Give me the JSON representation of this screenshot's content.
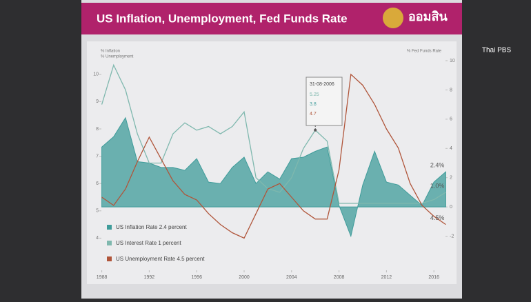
{
  "chart_data": {
    "type": "line",
    "title": "US Inflation, Unemployment, Fed Funds Rate",
    "logo": "ออมสิน",
    "watermark": "Thai PBS",
    "y_label": [
      "% Inflation",
      "% Unemployment"
    ],
    "y2_label": "% Fed Funds Rate",
    "x": [
      1988,
      1989,
      1990,
      1991,
      1992,
      1993,
      1994,
      1995,
      1996,
      1997,
      1998,
      1999,
      2000,
      2001,
      2002,
      2003,
      2004,
      2005,
      2006,
      2007,
      2008,
      2009,
      2010,
      2011,
      2012,
      2013,
      2014,
      2015,
      2016,
      2017
    ],
    "xlim": [
      1987.5,
      2017.5
    ],
    "xticks": [
      1988,
      1992,
      1996,
      2000,
      2004,
      2008,
      2012,
      2016
    ],
    "ylim": [
      3,
      10.5
    ],
    "yticks": [
      4,
      5,
      6,
      7,
      8,
      9,
      10
    ],
    "y2lim": [
      -4,
      10
    ],
    "y2ticks": [
      -2,
      0,
      2,
      4,
      6,
      8,
      10
    ],
    "series": [
      {
        "name": "US Inflation Rate  2.4 percent",
        "kind": "area",
        "axis": "y2",
        "color": "#3f9c9a",
        "end_label": "2.4%",
        "values": [
          4.1,
          4.8,
          6.1,
          3.1,
          3.0,
          2.7,
          2.7,
          2.5,
          3.3,
          1.7,
          1.6,
          2.7,
          3.4,
          1.6,
          2.4,
          1.9,
          3.3,
          3.4,
          3.8,
          4.1,
          0.1,
          -2.0,
          1.5,
          3.8,
          1.7,
          1.5,
          0.8,
          0.1,
          1.7,
          2.4
        ]
      },
      {
        "name": "US Interest Rate  1 percent",
        "kind": "line",
        "axis": "y2",
        "color": "#7fb8ae",
        "end_label": "1.0%",
        "values": [
          7.0,
          9.7,
          8.0,
          5.0,
          3.0,
          3.0,
          5.0,
          5.75,
          5.25,
          5.5,
          5.0,
          5.5,
          6.5,
          2.0,
          1.25,
          1.0,
          2.0,
          4.0,
          5.25,
          4.5,
          0.25,
          0.25,
          0.25,
          0.25,
          0.25,
          0.25,
          0.25,
          0.25,
          0.5,
          1.0
        ]
      },
      {
        "name": "US Unemployment Rate  4.5 percent",
        "kind": "line",
        "axis": "y",
        "color": "#b0553a",
        "end_label": "4.5%",
        "values": [
          5.5,
          5.2,
          5.8,
          6.8,
          7.7,
          6.9,
          6.1,
          5.6,
          5.4,
          4.9,
          4.5,
          4.2,
          4.0,
          4.9,
          5.8,
          6.0,
          5.5,
          5.0,
          4.7,
          4.7,
          6.5,
          10.0,
          9.6,
          8.9,
          8.0,
          7.3,
          6.0,
          5.2,
          4.8,
          4.5
        ]
      }
    ],
    "tooltip": {
      "date": "31-08-2006",
      "values": [
        "5.25",
        "3.8",
        "4.7"
      ]
    }
  }
}
